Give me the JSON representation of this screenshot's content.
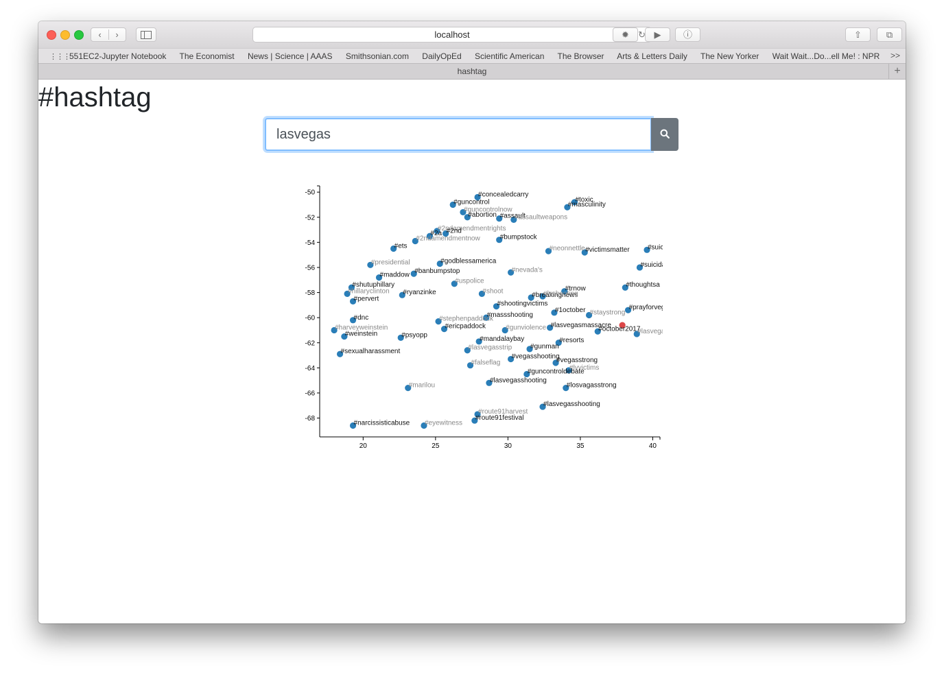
{
  "browser": {
    "address": "localhost",
    "bookmarks": [
      "551EC2-Jupyter Notebook",
      "The Economist",
      "News | Science | AAAS",
      "Smithsonian.com",
      "DailyOpEd",
      "Scientific American",
      "The Browser",
      "Arts & Letters Daily",
      "The New Yorker",
      "Wait Wait...Do...ell Me! : NPR"
    ],
    "bookmarks_more": ">>",
    "tab_title": "hashtag",
    "new_tab_label": "+"
  },
  "page": {
    "title": "#hashtag",
    "search_value": "lasvegas"
  },
  "colors": {
    "point": "#1f77b4",
    "highlight": "#d62728",
    "focus_ring": "#80bdff",
    "search_button": "#6c757d"
  },
  "icons": [
    "back-icon",
    "forward-icon",
    "sidebar-icon",
    "reload-icon",
    "share-icon",
    "tabs-icon",
    "search-icon"
  ],
  "chart_data": {
    "type": "scatter",
    "title": "",
    "xlabel": "",
    "ylabel": "",
    "xlim": [
      17,
      40.5
    ],
    "ylim": [
      -69.5,
      -49.5
    ],
    "xticks": [
      20,
      25,
      30,
      35,
      40
    ],
    "yticks": [
      -50,
      -52,
      -54,
      -56,
      -58,
      -60,
      -62,
      -64,
      -66,
      -68
    ],
    "grid": false,
    "points": [
      {
        "x": 27.9,
        "y": -50.4,
        "label": "#concealedcarry"
      },
      {
        "x": 26.2,
        "y": -51.0,
        "label": "#guncontrol"
      },
      {
        "x": 26.9,
        "y": -51.6,
        "label": "#guncontrolnow"
      },
      {
        "x": 27.2,
        "y": -52.0,
        "label": "#abortion"
      },
      {
        "x": 29.4,
        "y": -52.1,
        "label": "#assault"
      },
      {
        "x": 30.4,
        "y": -52.2,
        "label": "#assaultweapons"
      },
      {
        "x": 34.6,
        "y": -50.8,
        "label": "#toxic"
      },
      {
        "x": 34.1,
        "y": -51.2,
        "label": "#masculinity"
      },
      {
        "x": 25.1,
        "y": -53.1,
        "label": "#2ndamendmentrights"
      },
      {
        "x": 25.7,
        "y": -53.3,
        "label": "#2nd"
      },
      {
        "x": 24.6,
        "y": -53.5,
        "label": "#2a"
      },
      {
        "x": 23.6,
        "y": -53.9,
        "label": "#2ndamendmentnow"
      },
      {
        "x": 29.4,
        "y": -53.8,
        "label": "#bumpstock"
      },
      {
        "x": 22.1,
        "y": -54.5,
        "label": "#ets"
      },
      {
        "x": 32.8,
        "y": -54.7,
        "label": "#neonnettle"
      },
      {
        "x": 35.3,
        "y": -54.8,
        "label": "#victimsmatter"
      },
      {
        "x": 39.6,
        "y": -54.6,
        "label": "#suicide"
      },
      {
        "x": 20.5,
        "y": -55.8,
        "label": "#presidential"
      },
      {
        "x": 25.3,
        "y": -55.7,
        "label": "#godblessamerica"
      },
      {
        "x": 23.5,
        "y": -56.5,
        "label": "#banbumpstop"
      },
      {
        "x": 30.2,
        "y": -56.4,
        "label": "#nevada's"
      },
      {
        "x": 39.1,
        "y": -56.0,
        "label": "#suicida"
      },
      {
        "x": 21.1,
        "y": -56.8,
        "label": "#maddow"
      },
      {
        "x": 26.3,
        "y": -57.3,
        "label": "#uspolice"
      },
      {
        "x": 38.1,
        "y": -57.6,
        "label": "#thoughtsa"
      },
      {
        "x": 19.2,
        "y": -57.6,
        "label": "#shutuphillary"
      },
      {
        "x": 18.9,
        "y": -58.1,
        "label": "#hillaryclinton"
      },
      {
        "x": 22.7,
        "y": -58.2,
        "label": "#ryanzinke"
      },
      {
        "x": 19.3,
        "y": -58.7,
        "label": "#pervert"
      },
      {
        "x": 28.2,
        "y": -58.1,
        "label": "#shoot"
      },
      {
        "x": 31.6,
        "y": -58.4,
        "label": "#breakingnews"
      },
      {
        "x": 33.9,
        "y": -57.9,
        "label": "#trnow"
      },
      {
        "x": 32.4,
        "y": -58.3,
        "label": "#lvshooting"
      },
      {
        "x": 29.2,
        "y": -59.1,
        "label": "#shootingvictims"
      },
      {
        "x": 19.3,
        "y": -60.2,
        "label": "#dnc"
      },
      {
        "x": 25.2,
        "y": -60.3,
        "label": "#stephenpaddock"
      },
      {
        "x": 28.5,
        "y": -60.0,
        "label": "#massshooting"
      },
      {
        "x": 33.2,
        "y": -59.6,
        "label": "#1october"
      },
      {
        "x": 35.6,
        "y": -59.8,
        "label": "#staystrong"
      },
      {
        "x": 38.3,
        "y": -59.4,
        "label": "#prayforvegas"
      },
      {
        "x": 25.6,
        "y": -60.9,
        "label": "#ericpaddock"
      },
      {
        "x": 18.0,
        "y": -61.0,
        "label": "#harveyweinstein"
      },
      {
        "x": 18.7,
        "y": -61.5,
        "label": "#weinstein"
      },
      {
        "x": 22.6,
        "y": -61.6,
        "label": "#psyopp"
      },
      {
        "x": 29.8,
        "y": -61.0,
        "label": "#gunviolence"
      },
      {
        "x": 32.9,
        "y": -60.8,
        "label": "#lasvegasmassacre"
      },
      {
        "x": 36.2,
        "y": -61.1,
        "label": "#october2017"
      },
      {
        "x": 38.9,
        "y": -61.3,
        "label": "#lasvegas"
      },
      {
        "x": 28.0,
        "y": -61.9,
        "label": "#mandalaybay"
      },
      {
        "x": 33.5,
        "y": -62.0,
        "label": "#resorts"
      },
      {
        "x": 27.2,
        "y": -62.6,
        "label": "#lasvegasstrip"
      },
      {
        "x": 31.5,
        "y": -62.5,
        "label": "#gunman"
      },
      {
        "x": 18.4,
        "y": -62.9,
        "label": "#sexualharassment"
      },
      {
        "x": 27.4,
        "y": -63.8,
        "label": "#falseflag"
      },
      {
        "x": 30.2,
        "y": -63.3,
        "label": "#vegasshooting"
      },
      {
        "x": 33.3,
        "y": -63.6,
        "label": "#vegasstrong"
      },
      {
        "x": 34.2,
        "y": -64.2,
        "label": "#lvvictims"
      },
      {
        "x": 31.3,
        "y": -64.5,
        "label": "#guncontroldebate"
      },
      {
        "x": 28.7,
        "y": -65.2,
        "label": "#lasvegasshooting"
      },
      {
        "x": 23.1,
        "y": -65.6,
        "label": "#marilou"
      },
      {
        "x": 34.0,
        "y": -65.6,
        "label": "#losvagasstrong"
      },
      {
        "x": 32.4,
        "y": -67.1,
        "label": "#lasvegasshooting"
      },
      {
        "x": 27.9,
        "y": -67.7,
        "label": "#route91harvest"
      },
      {
        "x": 27.7,
        "y": -68.2,
        "label": "#route91festival"
      },
      {
        "x": 19.3,
        "y": -68.6,
        "label": "#narcissisticabuse"
      },
      {
        "x": 24.2,
        "y": -68.6,
        "label": "#eyewitness"
      }
    ],
    "highlight_point": {
      "x": 37.9,
      "y": -60.6
    }
  }
}
